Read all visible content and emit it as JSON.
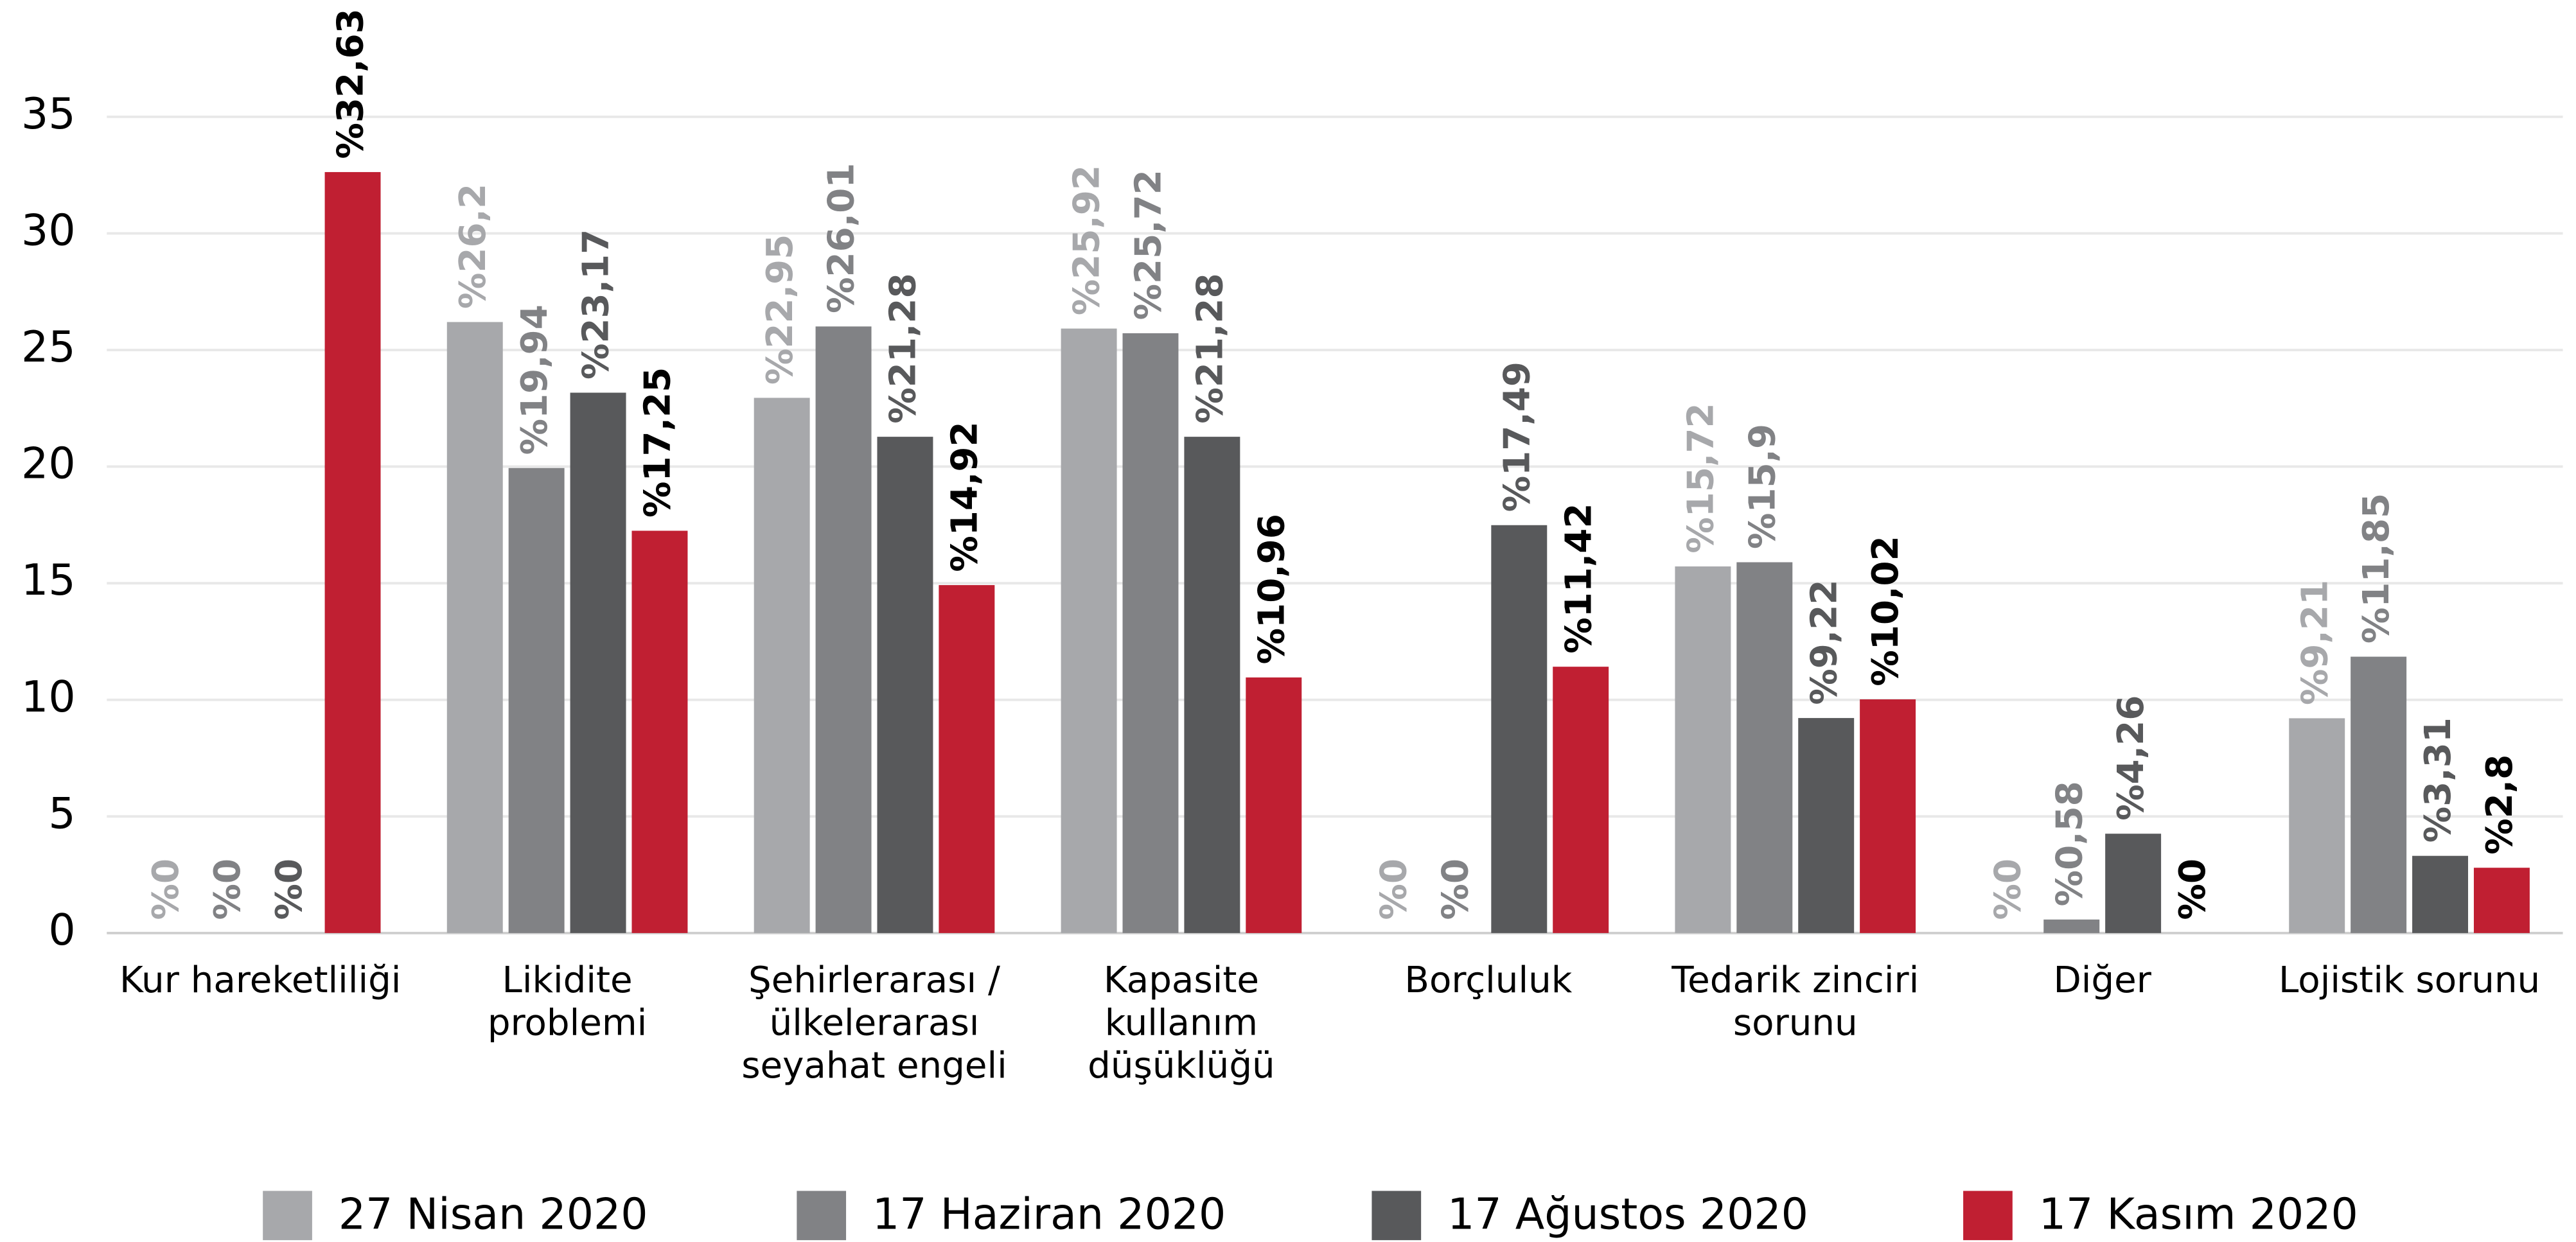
{
  "chart_data": {
    "type": "bar",
    "categories": [
      [
        "Kur hareketliliği"
      ],
      [
        "Likidite",
        "problemi"
      ],
      [
        "Şehirlerarası /",
        "ülkelerarası",
        "seyahat engeli"
      ],
      [
        "Kapasite",
        "kullanım",
        "düşüklüğü"
      ],
      [
        "Borçluluk"
      ],
      [
        "Tedarik zinciri",
        "sorunu"
      ],
      [
        "Diğer"
      ],
      [
        "Lojistik sorunu"
      ]
    ],
    "series": [
      {
        "name": "27 Nisan 2020",
        "color": "#a7a8ab",
        "label_color": "#a7a8ab",
        "values": [
          0,
          26.2,
          22.95,
          25.92,
          0,
          15.72,
          0,
          9.21
        ],
        "value_labels": [
          "%0",
          "%26,2",
          "%22,95",
          "%25,92",
          "%0",
          "%15,72",
          "%0",
          "%9,21"
        ]
      },
      {
        "name": "17 Haziran 2020",
        "color": "#818285",
        "label_color": "#818285",
        "values": [
          0,
          19.94,
          26.01,
          25.72,
          0,
          15.9,
          0.58,
          11.85
        ],
        "value_labels": [
          "%0",
          "%19,94",
          "%26,01",
          "%25,72",
          "%0",
          "%15,9",
          "%0,58",
          "%11,85"
        ]
      },
      {
        "name": "17 Ağustos 2020",
        "color": "#58595b",
        "label_color": "#58595b",
        "values": [
          0,
          23.17,
          21.28,
          21.28,
          17.49,
          9.22,
          4.26,
          3.31
        ],
        "value_labels": [
          "%0",
          "%23,17",
          "%21,28",
          "%21,28",
          "%17,49",
          "%9,22",
          "%4,26",
          "%3,31"
        ]
      },
      {
        "name": "17 Kasım 2020",
        "color": "#c01f32",
        "label_color": "#000000",
        "values": [
          32.63,
          17.25,
          14.92,
          10.96,
          11.42,
          10.02,
          0,
          2.8
        ],
        "value_labels": [
          "%32,63",
          "%17,25",
          "%14,92",
          "%10,96",
          "%11,42",
          "%10,02",
          "%0",
          "%2,8"
        ]
      }
    ],
    "ylim": [
      0,
      35
    ],
    "yticks": [
      0,
      5,
      10,
      15,
      20,
      25,
      30,
      35
    ],
    "grid": true,
    "legend": "bottom"
  }
}
